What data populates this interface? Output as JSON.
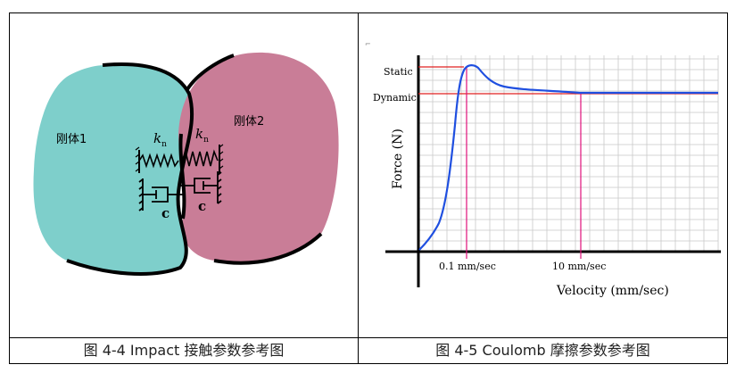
{
  "left_figure": {
    "body1_label": "刚体1",
    "body2_label": "刚体2",
    "spring_label1": "k",
    "spring_label2": "k",
    "spring_sub": "n",
    "damper_label1": "c",
    "damper_label2": "c",
    "caption": "图 4-4 Impact 接触参数参考图",
    "colors": {
      "body1": "#7ecfcb",
      "body2": "#c97d97"
    }
  },
  "right_figure": {
    "caption": "图 4-5 Coulomb 摩擦参数参考图",
    "chart_data": {
      "type": "line",
      "xlabel": "Velocity (mm/sec)",
      "ylabel": "Force (N)",
      "x_markers": [
        "0.1 mm/sec",
        "10 mm/sec"
      ],
      "y_markers": [
        "Static",
        "Dynamic"
      ],
      "grid": true,
      "colors": {
        "curve": "#1f4fe0",
        "marker": "#e0107a",
        "ref": "#e02020"
      }
    }
  }
}
